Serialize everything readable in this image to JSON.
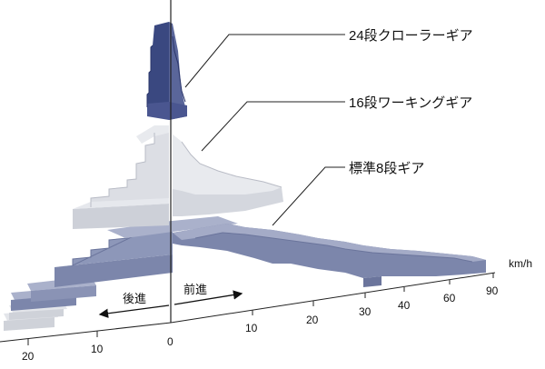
{
  "labels": {
    "crawler": "24段クローラーギア",
    "working": "16段ワーキングギア",
    "standard": "標準8段ギア"
  },
  "axis": {
    "unit": "km/h",
    "forward": "前進",
    "reverse": "後進",
    "forward_ticks": [
      "0",
      "10",
      "20",
      "30",
      "40",
      "60",
      "90"
    ],
    "reverse_ticks": [
      "10",
      "20"
    ]
  },
  "colors": {
    "crawler": "#3a4880",
    "working": "#c9ccd4",
    "standard": "#7c86ab",
    "axis": "#222222"
  }
}
